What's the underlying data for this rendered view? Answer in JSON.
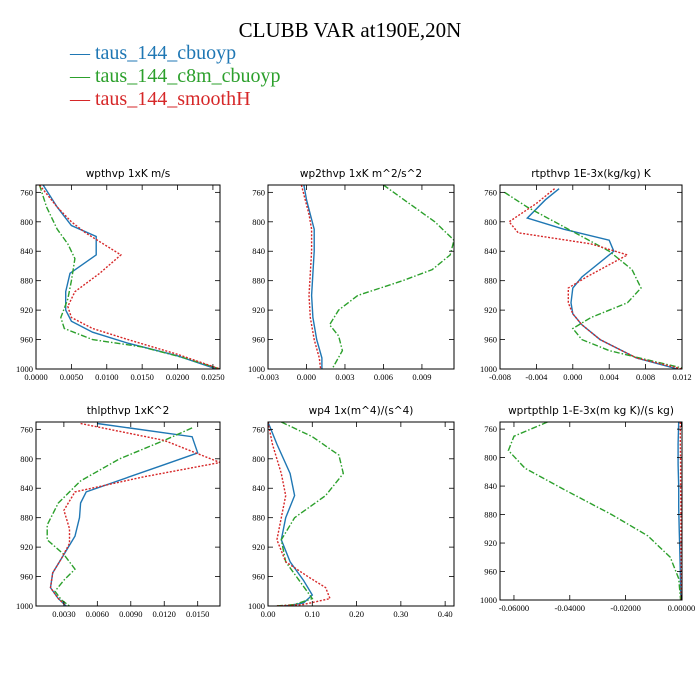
{
  "title": "CLUBB VAR at190E,20N",
  "legend": [
    {
      "label": "taus_144_cbuoyp",
      "color": "#1f77b4"
    },
    {
      "label": "taus_144_c8m_cbuoyp",
      "color": "#2ca02c"
    },
    {
      "label": "taus_144_smoothH",
      "color": "#d62728"
    }
  ],
  "chart_data": [
    {
      "type": "line",
      "title": "wpthvp   1xK  m/s",
      "xlim": [
        0,
        0.026
      ],
      "ylim": [
        1000,
        750
      ],
      "xticks": [
        "0.0000",
        "0.0050",
        "0.0100",
        "0.0150",
        "0.0200",
        "0.0250"
      ],
      "xtick_values": [
        0,
        0.005,
        0.01,
        0.015,
        0.02,
        0.025
      ],
      "yticks": [
        "760",
        "800",
        "840",
        "880",
        "920",
        "960",
        "1000"
      ],
      "ytick_values": [
        760,
        800,
        840,
        880,
        920,
        960,
        1000
      ],
      "series": [
        {
          "name": "taus_144_cbuoyp",
          "color": "#1f77b4",
          "style": "solid",
          "x": [
            0.001,
            0.003,
            0.005,
            0.0085,
            0.0085,
            0.0048,
            0.0042,
            0.0042,
            0.005,
            0.008,
            0.013,
            0.02,
            0.0255
          ],
          "y": [
            750,
            780,
            805,
            820,
            845,
            870,
            895,
            920,
            935,
            950,
            965,
            982,
            1000
          ]
        },
        {
          "name": "taus_144_c8m_cbuoyp",
          "color": "#2ca02c",
          "style": "dashed",
          "x": [
            0.0005,
            0.0015,
            0.003,
            0.0045,
            0.0055,
            0.005,
            0.0045,
            0.0035,
            0.004,
            0.008,
            0.015,
            0.021,
            0.026
          ],
          "y": [
            750,
            780,
            810,
            830,
            850,
            880,
            905,
            930,
            945,
            960,
            970,
            985,
            1000
          ]
        },
        {
          "name": "taus_144_smoothH",
          "color": "#d62728",
          "style": "dotted",
          "x": [
            0.0005,
            0.003,
            0.005,
            0.007,
            0.012,
            0.009,
            0.0055,
            0.0045,
            0.005,
            0.008,
            0.013,
            0.02,
            0.026
          ],
          "y": [
            750,
            780,
            800,
            815,
            845,
            870,
            895,
            915,
            930,
            945,
            960,
            980,
            1000
          ]
        }
      ]
    },
    {
      "type": "line",
      "title": "wp2thvp   1xK  m^2/s^2",
      "xlim": [
        -0.003,
        0.0115
      ],
      "ylim": [
        1000,
        750
      ],
      "xticks": [
        "-0.003",
        "0.000",
        "0.003",
        "0.006",
        "0.009"
      ],
      "xtick_values": [
        -0.003,
        0,
        0.003,
        0.006,
        0.009
      ],
      "yticks": [
        "760",
        "800",
        "840",
        "880",
        "920",
        "960",
        "1000"
      ],
      "ytick_values": [
        760,
        800,
        840,
        880,
        920,
        960,
        1000
      ],
      "series": [
        {
          "name": "taus_144_cbuoyp",
          "color": "#1f77b4",
          "style": "solid",
          "x": [
            -0.0002,
            0.0,
            0.0003,
            0.0006,
            0.0006,
            0.0005,
            0.0004,
            0.0005,
            0.0008,
            0.0012,
            0.0012
          ],
          "y": [
            750,
            770,
            790,
            810,
            840,
            870,
            900,
            930,
            960,
            985,
            1000
          ]
        },
        {
          "name": "taus_144_c8m_cbuoyp",
          "color": "#2ca02c",
          "style": "dashed",
          "x": [
            0.006,
            0.008,
            0.01,
            0.0115,
            0.0112,
            0.0098,
            0.0075,
            0.004,
            0.0025,
            0.0018,
            0.0025,
            0.0028,
            0.002
          ],
          "y": [
            750,
            775,
            800,
            825,
            845,
            865,
            880,
            900,
            920,
            940,
            955,
            975,
            1000
          ]
        },
        {
          "name": "taus_144_smoothH",
          "color": "#d62728",
          "style": "dotted",
          "x": [
            -0.0004,
            -0.0001,
            0.0002,
            0.0004,
            0.0004,
            0.0003,
            0.0002,
            0.0003,
            0.0006,
            0.001,
            0.0011
          ],
          "y": [
            750,
            770,
            790,
            810,
            840,
            870,
            900,
            930,
            960,
            985,
            1000
          ]
        }
      ]
    },
    {
      "type": "line",
      "title": "rtpthvp   1E-3x(kg/kg) K",
      "xlim": [
        -0.008,
        0.012
      ],
      "ylim": [
        1000,
        750
      ],
      "xticks": [
        "-0.008",
        "-0.004",
        "0.000",
        "0.004",
        "0.008",
        "0.012"
      ],
      "xtick_values": [
        -0.008,
        -0.004,
        0,
        0.004,
        0.008,
        0.012
      ],
      "yticks": [
        "760",
        "800",
        "840",
        "880",
        "920",
        "960",
        "1000"
      ],
      "ytick_values": [
        760,
        800,
        840,
        880,
        920,
        960,
        1000
      ],
      "series": [
        {
          "name": "taus_144_cbuoyp",
          "color": "#1f77b4",
          "style": "solid",
          "x": [
            -0.0015,
            -0.003,
            -0.005,
            -0.001,
            0.004,
            0.0045,
            0.001,
            0.0,
            -0.0002,
            0.0,
            0.001,
            0.003,
            0.007,
            0.0115
          ],
          "y": [
            755,
            770,
            795,
            810,
            825,
            840,
            875,
            890,
            910,
            925,
            940,
            960,
            985,
            1000
          ]
        },
        {
          "name": "taus_144_c8m_cbuoyp",
          "color": "#2ca02c",
          "style": "dashed",
          "x": [
            -0.0075,
            -0.005,
            -0.002,
            0.001,
            0.004,
            0.0065,
            0.0075,
            0.006,
            0.002,
            0.0,
            0.001,
            0.004,
            0.009,
            0.0125
          ],
          "y": [
            760,
            780,
            800,
            820,
            840,
            865,
            890,
            910,
            930,
            945,
            960,
            975,
            990,
            1000
          ]
        },
        {
          "name": "taus_144_smoothH",
          "color": "#d62728",
          "style": "dotted",
          "x": [
            -0.002,
            -0.004,
            -0.007,
            -0.006,
            0.002,
            0.006,
            0.0015,
            -0.0005,
            -0.0005,
            0.0,
            0.001,
            0.003,
            0.007,
            0.012
          ],
          "y": [
            755,
            775,
            800,
            815,
            830,
            845,
            875,
            890,
            910,
            925,
            940,
            960,
            985,
            1000
          ]
        }
      ]
    },
    {
      "type": "line",
      "title": "thlpthvp   1xK^2",
      "xlim": [
        0.0005,
        0.017
      ],
      "ylim": [
        1000,
        750
      ],
      "xticks": [
        "0.0030",
        "0.0060",
        "0.0090",
        "0.0120",
        "0.0150"
      ],
      "xtick_values": [
        0.003,
        0.006,
        0.009,
        0.012,
        0.015
      ],
      "yticks": [
        "760",
        "800",
        "840",
        "880",
        "920",
        "960",
        "1000"
      ],
      "ytick_values": [
        760,
        800,
        840,
        880,
        920,
        960,
        1000
      ],
      "series": [
        {
          "name": "taus_144_cbuoyp",
          "color": "#1f77b4",
          "style": "solid",
          "x": [
            0.006,
            0.0145,
            0.015,
            0.012,
            0.005,
            0.0045,
            0.0044,
            0.004,
            0.003,
            0.002,
            0.0018,
            0.0025,
            0.0032
          ],
          "y": [
            752,
            770,
            792,
            808,
            845,
            860,
            880,
            905,
            930,
            955,
            975,
            990,
            1000
          ]
        },
        {
          "name": "taus_144_c8m_cbuoyp",
          "color": "#2ca02c",
          "style": "dashed",
          "x": [
            0.0145,
            0.012,
            0.008,
            0.0045,
            0.0025,
            0.0015,
            0.0015,
            0.003,
            0.004,
            0.003,
            0.0022,
            0.0028,
            0.0035
          ],
          "y": [
            758,
            775,
            800,
            830,
            860,
            890,
            910,
            930,
            950,
            965,
            980,
            992,
            1000
          ]
        },
        {
          "name": "taus_144_smoothH",
          "color": "#d62728",
          "style": "dotted",
          "x": [
            0.0045,
            0.012,
            0.017,
            0.01,
            0.004,
            0.003,
            0.0035,
            0.0035,
            0.0028,
            0.002,
            0.0018,
            0.0025,
            0.0032
          ],
          "y": [
            752,
            775,
            805,
            825,
            845,
            870,
            895,
            915,
            935,
            955,
            975,
            990,
            1000
          ]
        }
      ]
    },
    {
      "type": "line",
      "title": "wp4   1x(m^4)/(s^4)",
      "xlim": [
        0,
        0.42
      ],
      "ylim": [
        1000,
        750
      ],
      "xticks": [
        "0.00",
        "0.10",
        "0.20",
        "0.30",
        "0.40"
      ],
      "xtick_values": [
        0,
        0.1,
        0.2,
        0.3,
        0.4
      ],
      "yticks": [
        "760",
        "800",
        "840",
        "880",
        "920",
        "960",
        "1000"
      ],
      "ytick_values": [
        760,
        800,
        840,
        880,
        920,
        960,
        1000
      ],
      "series": [
        {
          "name": "taus_144_cbuoyp",
          "color": "#1f77b4",
          "style": "solid",
          "x": [
            0.0,
            0.02,
            0.05,
            0.06,
            0.04,
            0.03,
            0.05,
            0.08,
            0.1,
            0.08,
            0.04,
            0.02
          ],
          "y": [
            750,
            780,
            820,
            850,
            880,
            910,
            940,
            965,
            985,
            996,
            1000,
            1000
          ]
        },
        {
          "name": "taus_144_c8m_cbuoyp",
          "color": "#2ca02c",
          "style": "dashed",
          "x": [
            0.03,
            0.1,
            0.16,
            0.17,
            0.13,
            0.06,
            0.03,
            0.04,
            0.07,
            0.1,
            0.06,
            0.02
          ],
          "y": [
            750,
            770,
            795,
            820,
            850,
            880,
            910,
            940,
            965,
            990,
            998,
            1000
          ]
        },
        {
          "name": "taus_144_smoothH",
          "color": "#d62728",
          "style": "dotted",
          "x": [
            0.0,
            0.01,
            0.03,
            0.04,
            0.03,
            0.02,
            0.04,
            0.09,
            0.13,
            0.14,
            0.08,
            0.02
          ],
          "y": [
            750,
            780,
            820,
            850,
            880,
            910,
            940,
            960,
            975,
            990,
            998,
            1000
          ]
        }
      ]
    },
    {
      "type": "line",
      "title": "wprtpthlp   1-E-3x(m kg K)/(s kg)",
      "xlim": [
        -0.065,
        0.0002
      ],
      "ylim": [
        1000,
        750
      ],
      "xticks": [
        "-0.06000",
        "-0.04000",
        "-0.02000",
        "0.00000"
      ],
      "xtick_values": [
        -0.06,
        -0.04,
        -0.02,
        0
      ],
      "yticks": [
        "760",
        "800",
        "840",
        "880",
        "920",
        "960",
        "1000"
      ],
      "ytick_values": [
        760,
        800,
        840,
        880,
        920,
        960,
        1000
      ],
      "series": [
        {
          "name": "taus_144_cbuoyp",
          "color": "#1f77b4",
          "style": "solid",
          "x": [
            -0.001,
            -0.0012,
            -0.0012,
            -0.001,
            -0.001,
            -0.0008,
            -0.0006,
            -0.0004,
            -0.0003,
            -0.0002
          ],
          "y": [
            750,
            780,
            810,
            840,
            870,
            900,
            930,
            960,
            985,
            1000
          ]
        },
        {
          "name": "taus_144_c8m_cbuoyp",
          "color": "#2ca02c",
          "style": "dashed",
          "x": [
            -0.048,
            -0.06,
            -0.062,
            -0.056,
            -0.042,
            -0.025,
            -0.012,
            -0.004,
            -0.001,
            -0.0003
          ],
          "y": [
            750,
            770,
            790,
            815,
            845,
            880,
            910,
            940,
            970,
            1000
          ]
        },
        {
          "name": "taus_144_smoothH",
          "color": "#d62728",
          "style": "dotted",
          "x": [
            -0.0004,
            -0.0004,
            -0.0003,
            -0.0003,
            -0.0002,
            -0.0002,
            -0.0002,
            -0.0001,
            -0.0001,
            -0.0001
          ],
          "y": [
            750,
            780,
            810,
            840,
            870,
            900,
            930,
            960,
            985,
            1000
          ]
        }
      ]
    }
  ]
}
